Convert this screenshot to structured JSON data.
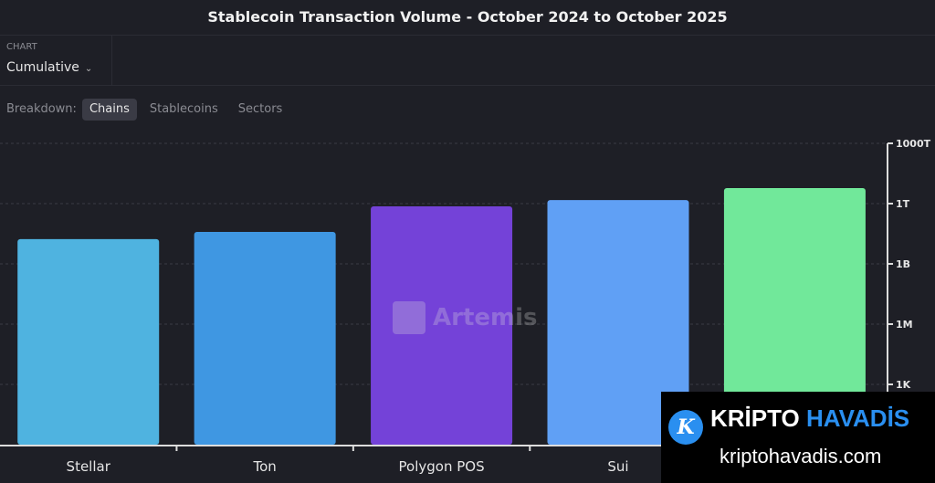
{
  "header": {
    "title": "Stablecoin Transaction Volume - October 2024 to October 2025"
  },
  "controls": {
    "chart_label": "CHART",
    "chart_value": "Cumulative",
    "breakdown_label": "Breakdown:",
    "tabs": [
      {
        "label": "Chains",
        "active": true
      },
      {
        "label": "Stablecoins",
        "active": false
      },
      {
        "label": "Sectors",
        "active": false
      }
    ]
  },
  "watermark": {
    "text": "Artemis"
  },
  "overlay": {
    "brand_white": "KRİPTO",
    "brand_blue": "HAVADİS",
    "url": "kriptohavadis.com",
    "logo_letter": "K"
  },
  "chart_data": {
    "type": "bar",
    "title": "Stablecoin Transaction Volume - October 2024 to October 2025",
    "categories": [
      "Stellar",
      "Ton",
      "Polygon POS",
      "Sui",
      ""
    ],
    "values": [
      17000000000,
      39000000000,
      730000000000,
      1500000000000,
      5900000000000
    ],
    "colors": [
      "#4fb3e0",
      "#3f97e2",
      "#7442d8",
      "#60a0f5",
      "#71e89a"
    ],
    "yscale": "log",
    "ylim": [
      1,
      1000000000000000
    ],
    "yticks": [
      {
        "value": 1000,
        "label": "1K"
      },
      {
        "value": 1000000,
        "label": "1M"
      },
      {
        "value": 1000000000,
        "label": "1B"
      },
      {
        "value": 1000000000000,
        "label": "1T"
      },
      {
        "value": 1000000000000000,
        "label": "1000T"
      }
    ],
    "yaxis_position": "right",
    "grid": true
  }
}
